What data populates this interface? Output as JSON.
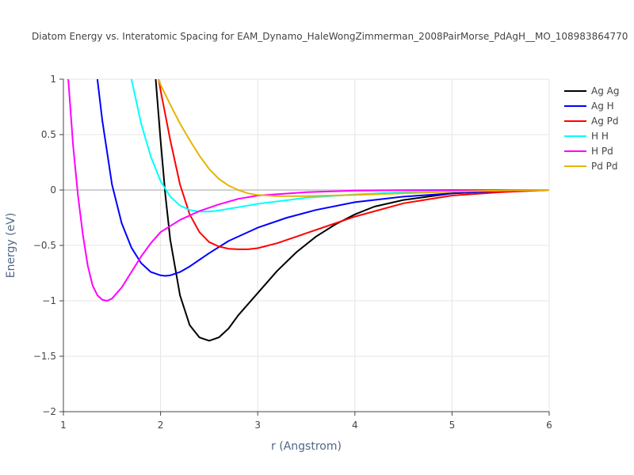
{
  "chart_data": {
    "type": "line",
    "title": "Diatom Energy vs. Interatomic Spacing for EAM_Dynamo_HaleWongZimmerman_2008PairMorse_PdAgH__MO_108983864770",
    "xlabel": "r (Angstrom)",
    "ylabel": "Energy (eV)",
    "xlim": [
      1,
      6
    ],
    "ylim": [
      -2,
      1
    ],
    "xticks": [
      1,
      2,
      3,
      4,
      5,
      6
    ],
    "yticks": [
      -2,
      -1.5,
      -1,
      -0.5,
      0,
      0.5,
      1
    ],
    "ytick_labels": [
      "−2",
      "−1.5",
      "−1",
      "−0.5",
      "0",
      "0.5",
      "1"
    ],
    "grid": true,
    "legend_position": "top-right",
    "series": [
      {
        "name": "Ag Ag",
        "color": "#000000",
        "x": [
          1.95,
          2.0,
          2.05,
          2.1,
          2.2,
          2.3,
          2.4,
          2.5,
          2.6,
          2.7,
          2.8,
          3.0,
          3.2,
          3.4,
          3.6,
          3.8,
          4.0,
          4.2,
          4.5,
          5.0,
          5.5,
          6.0
        ],
        "y": [
          1.0,
          0.45,
          -0.05,
          -0.45,
          -0.95,
          -1.22,
          -1.33,
          -1.36,
          -1.33,
          -1.25,
          -1.13,
          -0.93,
          -0.73,
          -0.56,
          -0.42,
          -0.31,
          -0.22,
          -0.15,
          -0.09,
          -0.03,
          -0.01,
          0.0
        ]
      },
      {
        "name": "Ag H",
        "color": "#0000ff",
        "x": [
          1.35,
          1.4,
          1.5,
          1.6,
          1.7,
          1.8,
          1.9,
          2.0,
          2.05,
          2.1,
          2.2,
          2.3,
          2.5,
          2.7,
          3.0,
          3.3,
          3.6,
          4.0,
          4.5,
          5.0,
          5.5,
          6.0
        ],
        "y": [
          1.0,
          0.63,
          0.05,
          -0.3,
          -0.52,
          -0.66,
          -0.74,
          -0.77,
          -0.775,
          -0.77,
          -0.74,
          -0.69,
          -0.57,
          -0.46,
          -0.34,
          -0.25,
          -0.18,
          -0.11,
          -0.06,
          -0.03,
          -0.01,
          0.0
        ]
      },
      {
        "name": "Ag Pd",
        "color": "#ff0000",
        "x": [
          1.98,
          2.0,
          2.1,
          2.2,
          2.3,
          2.4,
          2.5,
          2.6,
          2.7,
          2.8,
          2.9,
          3.0,
          3.2,
          3.5,
          3.8,
          4.0,
          4.5,
          5.0,
          5.5,
          6.0
        ],
        "y": [
          1.0,
          0.9,
          0.45,
          0.05,
          -0.22,
          -0.38,
          -0.47,
          -0.51,
          -0.53,
          -0.535,
          -0.535,
          -0.525,
          -0.48,
          -0.39,
          -0.3,
          -0.24,
          -0.12,
          -0.05,
          -0.02,
          0.0
        ]
      },
      {
        "name": "H H",
        "color": "#00ffff",
        "x": [
          1.7,
          1.75,
          1.8,
          1.9,
          2.0,
          2.1,
          2.2,
          2.3,
          2.4,
          2.5,
          2.6,
          2.8,
          3.0,
          3.5,
          4.0,
          4.5,
          5.0,
          5.5,
          6.0
        ],
        "y": [
          1.0,
          0.8,
          0.6,
          0.3,
          0.08,
          -0.06,
          -0.14,
          -0.18,
          -0.195,
          -0.195,
          -0.185,
          -0.155,
          -0.125,
          -0.07,
          -0.04,
          -0.02,
          -0.01,
          -0.004,
          0.0
        ]
      },
      {
        "name": "H Pd",
        "color": "#ff00ff",
        "x": [
          1.05,
          1.1,
          1.15,
          1.2,
          1.25,
          1.3,
          1.35,
          1.4,
          1.45,
          1.5,
          1.6,
          1.7,
          1.8,
          1.9,
          2.0,
          2.2,
          2.4,
          2.6,
          2.8,
          3.0,
          3.5,
          4.0,
          4.5,
          5.0,
          6.0
        ],
        "y": [
          1.0,
          0.4,
          -0.05,
          -0.4,
          -0.68,
          -0.86,
          -0.95,
          -0.99,
          -1.0,
          -0.98,
          -0.88,
          -0.74,
          -0.6,
          -0.48,
          -0.38,
          -0.27,
          -0.19,
          -0.13,
          -0.08,
          -0.05,
          -0.02,
          -0.005,
          -0.002,
          0.0,
          0.0
        ]
      },
      {
        "name": "Pd Pd",
        "color": "#e6b400",
        "x": [
          1.98,
          2.0,
          2.1,
          2.2,
          2.3,
          2.4,
          2.5,
          2.6,
          2.7,
          2.8,
          2.9,
          3.0,
          3.2,
          3.5,
          4.0,
          4.5,
          5.0,
          5.5,
          6.0
        ],
        "y": [
          1.0,
          0.95,
          0.77,
          0.6,
          0.45,
          0.31,
          0.19,
          0.1,
          0.04,
          0.0,
          -0.03,
          -0.045,
          -0.055,
          -0.055,
          -0.045,
          -0.03,
          -0.015,
          -0.005,
          0.0
        ]
      }
    ]
  }
}
